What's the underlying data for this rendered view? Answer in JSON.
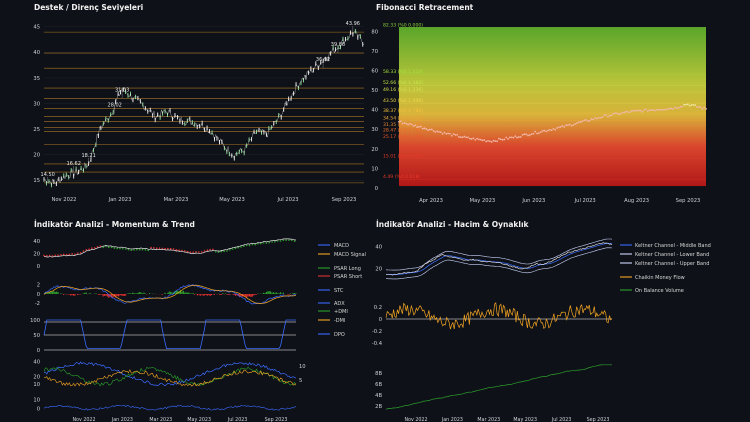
{
  "panels": {
    "sr_title": "Destek / Direnç Seviyeleri",
    "fib_title": "Fibonacci Retracement",
    "mom_title": "İndikatör Analizi - Momentum & Trend",
    "vol_title": "İndikatör Analizi - Hacim & Oynaklık"
  },
  "chart_data": [
    {
      "id": "support-resistance",
      "type": "line",
      "title": "Destek / Direnç Seviyeleri",
      "x_ticks": [
        "Nov 2022",
        "Jan 2023",
        "Mar 2023",
        "May 2023",
        "Jul 2023",
        "Sep 2023"
      ],
      "y_ticks": [
        15,
        20,
        25,
        30,
        35,
        40,
        45
      ],
      "ylim": [
        13.5,
        47.5
      ],
      "price_keypoints": [
        [
          0,
          15.2
        ],
        [
          3,
          14.5
        ],
        [
          6,
          16.0
        ],
        [
          9,
          16.6
        ],
        [
          12,
          18.2
        ],
        [
          15,
          25.0
        ],
        [
          18,
          28.0
        ],
        [
          21,
          33.0
        ],
        [
          24,
          31.0
        ],
        [
          27,
          29.5
        ],
        [
          30,
          27.5
        ],
        [
          33,
          28.5
        ],
        [
          36,
          27.0
        ],
        [
          39,
          26.5
        ],
        [
          42,
          26.0
        ],
        [
          45,
          24.5
        ],
        [
          48,
          22.0
        ],
        [
          51,
          20.0
        ],
        [
          54,
          21.0
        ],
        [
          57,
          24.5
        ],
        [
          60,
          24.0
        ],
        [
          63,
          27.0
        ],
        [
          66,
          31.0
        ],
        [
          69,
          34.5
        ],
        [
          72,
          36.5
        ],
        [
          75,
          38.5
        ],
        [
          78,
          40.5
        ],
        [
          81,
          42.5
        ],
        [
          83,
          43.96
        ],
        [
          86,
          42.0
        ]
      ],
      "levels": [
        14.5,
        16.62,
        18.21,
        22.0,
        24.5,
        25.3,
        26.5,
        27.5,
        29.0,
        31.03,
        33.02,
        36.92,
        39.86,
        43.96
      ],
      "annotations": [
        {
          "label": "14.50",
          "x": 1,
          "y": 14.5
        },
        {
          "label": "16.62",
          "x": 8,
          "y": 16.62
        },
        {
          "label": "18.21",
          "x": 12,
          "y": 18.21
        },
        {
          "label": "31.03",
          "x": 21,
          "y": 31.03
        },
        {
          "label": "28.02",
          "x": 19,
          "y": 28.02
        },
        {
          "label": "36.92",
          "x": 75,
          "y": 36.92
        },
        {
          "label": "39.86",
          "x": 79,
          "y": 39.86
        },
        {
          "label": "43.96",
          "x": 83,
          "y": 43.96
        }
      ]
    },
    {
      "id": "fibonacci",
      "type": "line",
      "title": "Fibonacci Retracement",
      "x_ticks": [
        "Apr 2023",
        "May 2023",
        "Jun 2023",
        "Jul 2023",
        "Aug 2023",
        "Sep 2023"
      ],
      "y_ticks": [
        0,
        10,
        20,
        30,
        40,
        50,
        60,
        70,
        80
      ],
      "ylim": [
        0,
        84
      ],
      "price_keypoints": [
        [
          0,
          34
        ],
        [
          6,
          31
        ],
        [
          12,
          28
        ],
        [
          18,
          25.5
        ],
        [
          24,
          24
        ],
        [
          30,
          26
        ],
        [
          36,
          28.5
        ],
        [
          42,
          31
        ],
        [
          48,
          34
        ],
        [
          54,
          37
        ],
        [
          60,
          39
        ],
        [
          66,
          40
        ],
        [
          72,
          41
        ],
        [
          75,
          43
        ],
        [
          78,
          41.5
        ],
        [
          80,
          40.5
        ]
      ],
      "levels": [
        {
          "label": "82.33 (%0 0.000)",
          "value": 82.33,
          "color": "#8bd33b"
        },
        {
          "label": "58.33 (%0.1.414)",
          "value": 58.33,
          "color": "#a6e43c"
        },
        {
          "label": "52.66 (%0.1.382)",
          "value": 52.66,
          "color": "#c5e64a"
        },
        {
          "label": "49.16 (%0.1.236)",
          "value": 49.16,
          "color": "#d9e050"
        },
        {
          "label": "43.50 (%0.1.000)",
          "value": 43.5,
          "color": "#f1d94a"
        },
        {
          "label": "38.37 (%0.0.786)",
          "value": 38.37,
          "color": "#f3c23c"
        },
        {
          "label": "34.54 (%0.0.618)",
          "value": 34.54,
          "color": "#f0a93a"
        },
        {
          "label": "31.35 (%0.0.500)",
          "value": 31.35,
          "color": "#f08c35"
        },
        {
          "label": "28.47 (%0.0.382)",
          "value": 28.47,
          "color": "#ee6e30"
        },
        {
          "label": "25.17 (%0.0.236)",
          "value": 25.17,
          "color": "#ec552c"
        },
        {
          "label": "15.01 (%0.0.000)",
          "value": 15.01,
          "color": "#e8392a"
        },
        {
          "label": "4.49 (%0.0.618)",
          "value": 4.49,
          "color": "#e83a2a"
        }
      ]
    },
    {
      "id": "momentum-trend",
      "type": "line",
      "title": "İndikatör Analizi - Momentum & Trend",
      "x_ticks": [
        "Nov 2022",
        "Jan 2023",
        "Mar 2023",
        "May 2023",
        "Jul 2023",
        "Sep 2023"
      ],
      "legend": [
        {
          "name": "MACD",
          "color": "#3b6bff"
        },
        {
          "name": "MACD Signal",
          "color": "#f5a623"
        },
        {
          "name": "PSAR Long",
          "color": "#2ca02c"
        },
        {
          "name": "PSAR Short",
          "color": "#e03030"
        },
        {
          "name": "STC",
          "color": "#3b6bff"
        },
        {
          "name": "ADX",
          "color": "#3b6bff"
        },
        {
          "name": "+DMI",
          "color": "#2ca02c"
        },
        {
          "name": "-DMI",
          "color": "#f5a623"
        },
        {
          "name": "DPO",
          "color": "#3b6bff"
        }
      ],
      "sub1_ticks": [
        0,
        20,
        40
      ],
      "sub2_ticks": [
        2,
        0,
        -2
      ],
      "sub3_ticks": [
        100,
        50,
        0
      ],
      "sub4_ticks": [
        40,
        20,
        10
      ],
      "sub4_right_ticks": [
        10,
        5
      ],
      "sub5_ticks": [
        10,
        0
      ]
    },
    {
      "id": "volume-volatility",
      "type": "line",
      "title": "İndikatör Analizi - Hacim & Oynaklık",
      "x_ticks": [
        "Nov 2022",
        "Jan 2023",
        "Mar 2023",
        "May 2023",
        "Jul 2023",
        "Sep 2023"
      ],
      "legend": [
        {
          "name": "Keltner Channel - Middle Band",
          "color": "#3b6bff"
        },
        {
          "name": "Keltner Channel - Lower Band",
          "color": "#cfd8ff"
        },
        {
          "name": "Keltner Channel - Upper Band",
          "color": "#cfd8ff"
        },
        {
          "name": "Chaikin Money Flow",
          "color": "#f5a623"
        },
        {
          "name": "On Balance Volume",
          "color": "#2ca02c"
        }
      ],
      "sub1_ticks": [
        40,
        20
      ],
      "sub2_ticks": [
        0.2,
        0,
        -0.2,
        -0.4
      ],
      "sub3_ticks": [
        "8B",
        "6B",
        "4B",
        "2B"
      ]
    }
  ]
}
